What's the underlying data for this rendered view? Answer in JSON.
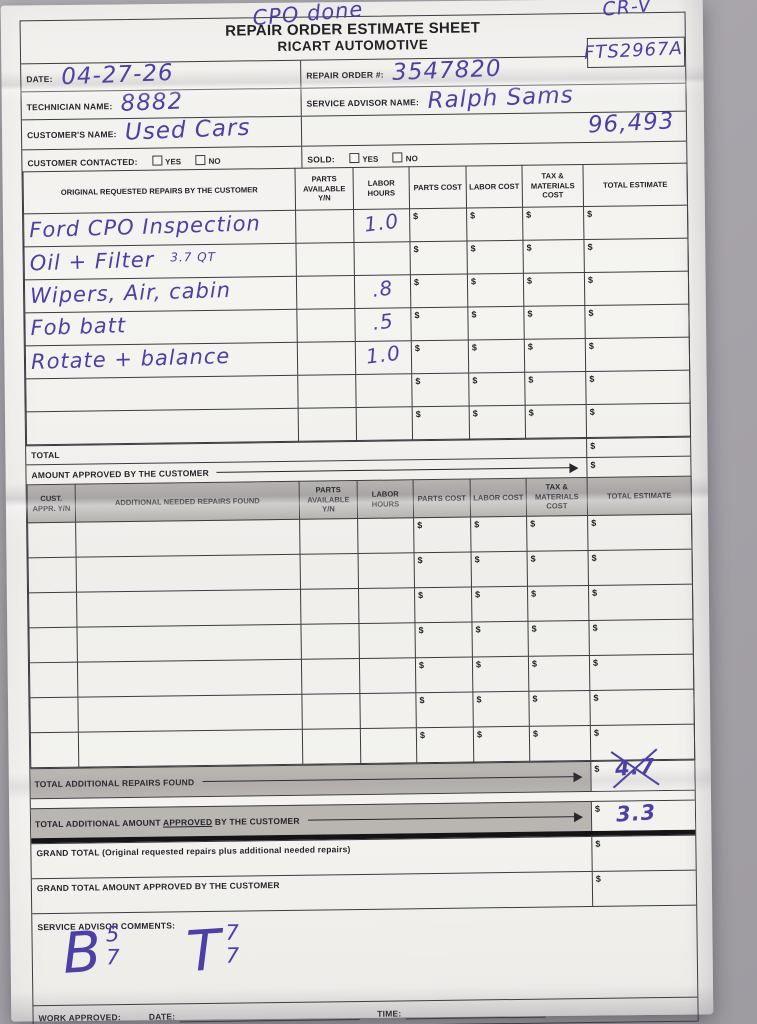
{
  "misc": {
    "currency_symbol": "$"
  },
  "annotations": {
    "top_note": "CPO done",
    "vehicle": "CR-V",
    "stock_number": "FTS2967A"
  },
  "header": {
    "title_line1": "REPAIR ORDER ESTIMATE SHEET",
    "title_line2": "RICART AUTOMOTIVE"
  },
  "info": {
    "date_label": "DATE:",
    "date_value": "04-27-26",
    "repair_order_label": "REPAIR ORDER #:",
    "repair_order_value": "3547820",
    "technician_label": "TECHNICIAN NAME:",
    "technician_value": "8882",
    "advisor_label": "SERVICE ADVISOR NAME:",
    "advisor_value": "Ralph Sams",
    "customer_label": "CUSTOMER'S NAME:",
    "customer_value": "Used Cars",
    "mileage_value": "96,493",
    "contacted_label": "CUSTOMER CONTACTED:",
    "sold_label": "SOLD:",
    "yes_label": "YES",
    "no_label": "NO"
  },
  "original_table": {
    "headers": [
      "ORIGINAL REQUESTED REPAIRS BY THE CUSTOMER",
      "PARTS AVAILABLE Y/N",
      "LABOR HOURS",
      "PARTS COST",
      "LABOR COST",
      "TAX & MATERIALS COST",
      "TOTAL ESTIMATE"
    ],
    "rows": [
      {
        "description": "Ford CPO Inspection",
        "note": "",
        "labor_hours": "1.0"
      },
      {
        "description": "Oil + Filter",
        "note": "3.7 QT",
        "labor_hours": ""
      },
      {
        "description": "Wipers, Air, cabin",
        "note": "",
        "labor_hours": ".8"
      },
      {
        "description": "Fob batt",
        "note": "",
        "labor_hours": ".5"
      },
      {
        "description": "Rotate + balance",
        "note": "",
        "labor_hours": "1.0"
      },
      {
        "description": "",
        "note": "",
        "labor_hours": ""
      },
      {
        "description": "",
        "note": "",
        "labor_hours": ""
      }
    ],
    "total_label": "TOTAL",
    "amount_approved_label": "AMOUNT APPROVED BY THE CUSTOMER"
  },
  "additional_table": {
    "headers": [
      "CUST. APPR. Y/N",
      "ADDITIONAL NEEDED REPAIRS FOUND",
      "PARTS AVAILABLE Y/N",
      "LABOR HOURS",
      "PARTS COST",
      "LABOR COST",
      "TAX & MATERIALS COST",
      "TOTAL ESTIMATE"
    ],
    "row_count": 7,
    "total_found_label": "TOTAL ADDITIONAL REPAIRS FOUND",
    "total_found_value": "4.7",
    "total_found_crossed_out": true,
    "total_approved_label_prefix": "TOTAL ADDITIONAL AMOUNT ",
    "total_approved_label_underlined": "APPROVED",
    "total_approved_label_suffix": " BY THE CUSTOMER",
    "total_approved_value": "3.3"
  },
  "grand": {
    "grand_total_label": "GRAND TOTAL (Original requested repairs plus additional needed repairs)",
    "grand_total_approved_label": "GRAND TOTAL AMOUNT APPROVED BY THE CUSTOMER",
    "comments_label": "SERVICE ADVISOR COMMENTS:",
    "comment_b": "B",
    "comment_b_top": "5",
    "comment_b_bottom": "7",
    "comment_t": "T",
    "comment_t_top": "7",
    "comment_t_bottom": "7"
  },
  "footer": {
    "work_approved_label": "WORK APPROVED:",
    "date_label": "DATE:",
    "time_label": "TIME:"
  }
}
